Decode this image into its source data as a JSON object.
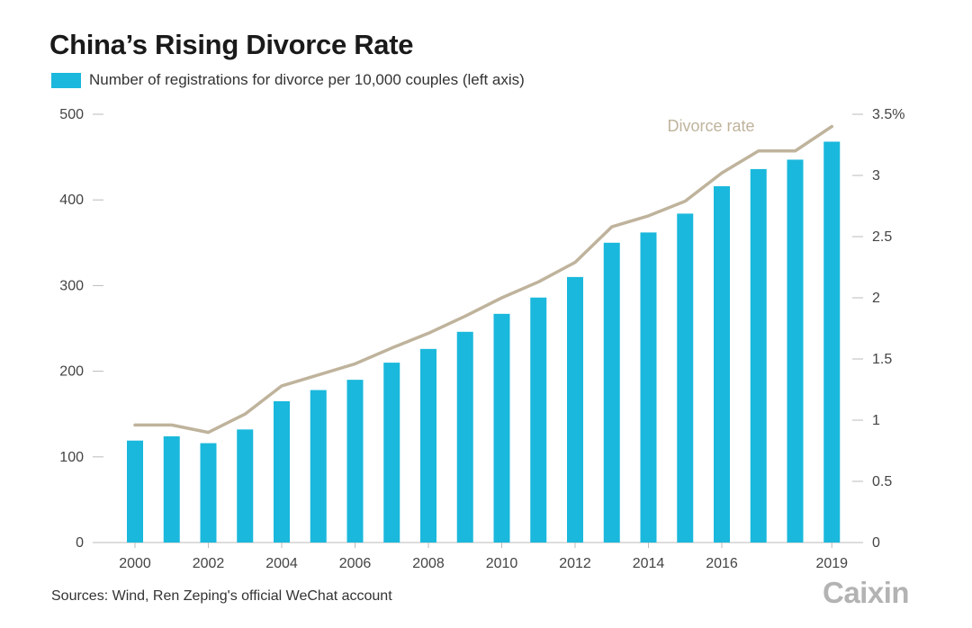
{
  "title": "China’s Rising Divorce Rate",
  "legend": {
    "bar_label": "Number of registrations for divorce per 10,000 couples (left axis)"
  },
  "source": "Sources: Wind, Ren Zeping's official WeChat account",
  "logo": "Caixin",
  "colors": {
    "bar": "#1ab8dc",
    "line": "#bfb39c",
    "axis": "#bbbbbb",
    "text": "#444444"
  },
  "chart_data": {
    "type": "bar",
    "x": [
      2000,
      2001,
      2002,
      2003,
      2004,
      2005,
      2006,
      2007,
      2008,
      2009,
      2010,
      2011,
      2012,
      2013,
      2014,
      2015,
      2016,
      2017,
      2018,
      2019
    ],
    "series": [
      {
        "name": "Number of registrations for divorce per 10,000 couples (left axis)",
        "axis": "left",
        "type": "bar",
        "values": [
          119,
          124,
          116,
          132,
          165,
          178,
          190,
          210,
          226,
          246,
          267,
          286,
          310,
          350,
          362,
          384,
          416,
          436,
          447,
          468
        ]
      },
      {
        "name": "Divorce rate",
        "axis": "right",
        "type": "line",
        "values": [
          0.96,
          0.96,
          0.9,
          1.05,
          1.28,
          1.37,
          1.46,
          1.59,
          1.71,
          1.85,
          2.0,
          2.13,
          2.29,
          2.58,
          2.67,
          2.79,
          3.02,
          3.2,
          3.2,
          3.4
        ]
      }
    ],
    "x_tick_labels": [
      "2000",
      "2002",
      "2004",
      "2006",
      "2008",
      "2010",
      "2012",
      "2014",
      "2016",
      "2019"
    ],
    "y_left": {
      "ticks": [
        0,
        100,
        200,
        300,
        400,
        500
      ],
      "range": [
        0,
        500
      ]
    },
    "y_right": {
      "ticks": [
        0,
        0.5,
        1,
        1.5,
        2,
        2.5,
        3,
        3.5
      ],
      "tick_labels": [
        "0",
        "0.5",
        "1",
        "1.5",
        "2",
        "2.5",
        "3",
        "3.5%"
      ],
      "range": [
        0,
        3.5
      ]
    },
    "annotation": "Divorce rate",
    "grid": false,
    "legend_position": "top-left"
  }
}
